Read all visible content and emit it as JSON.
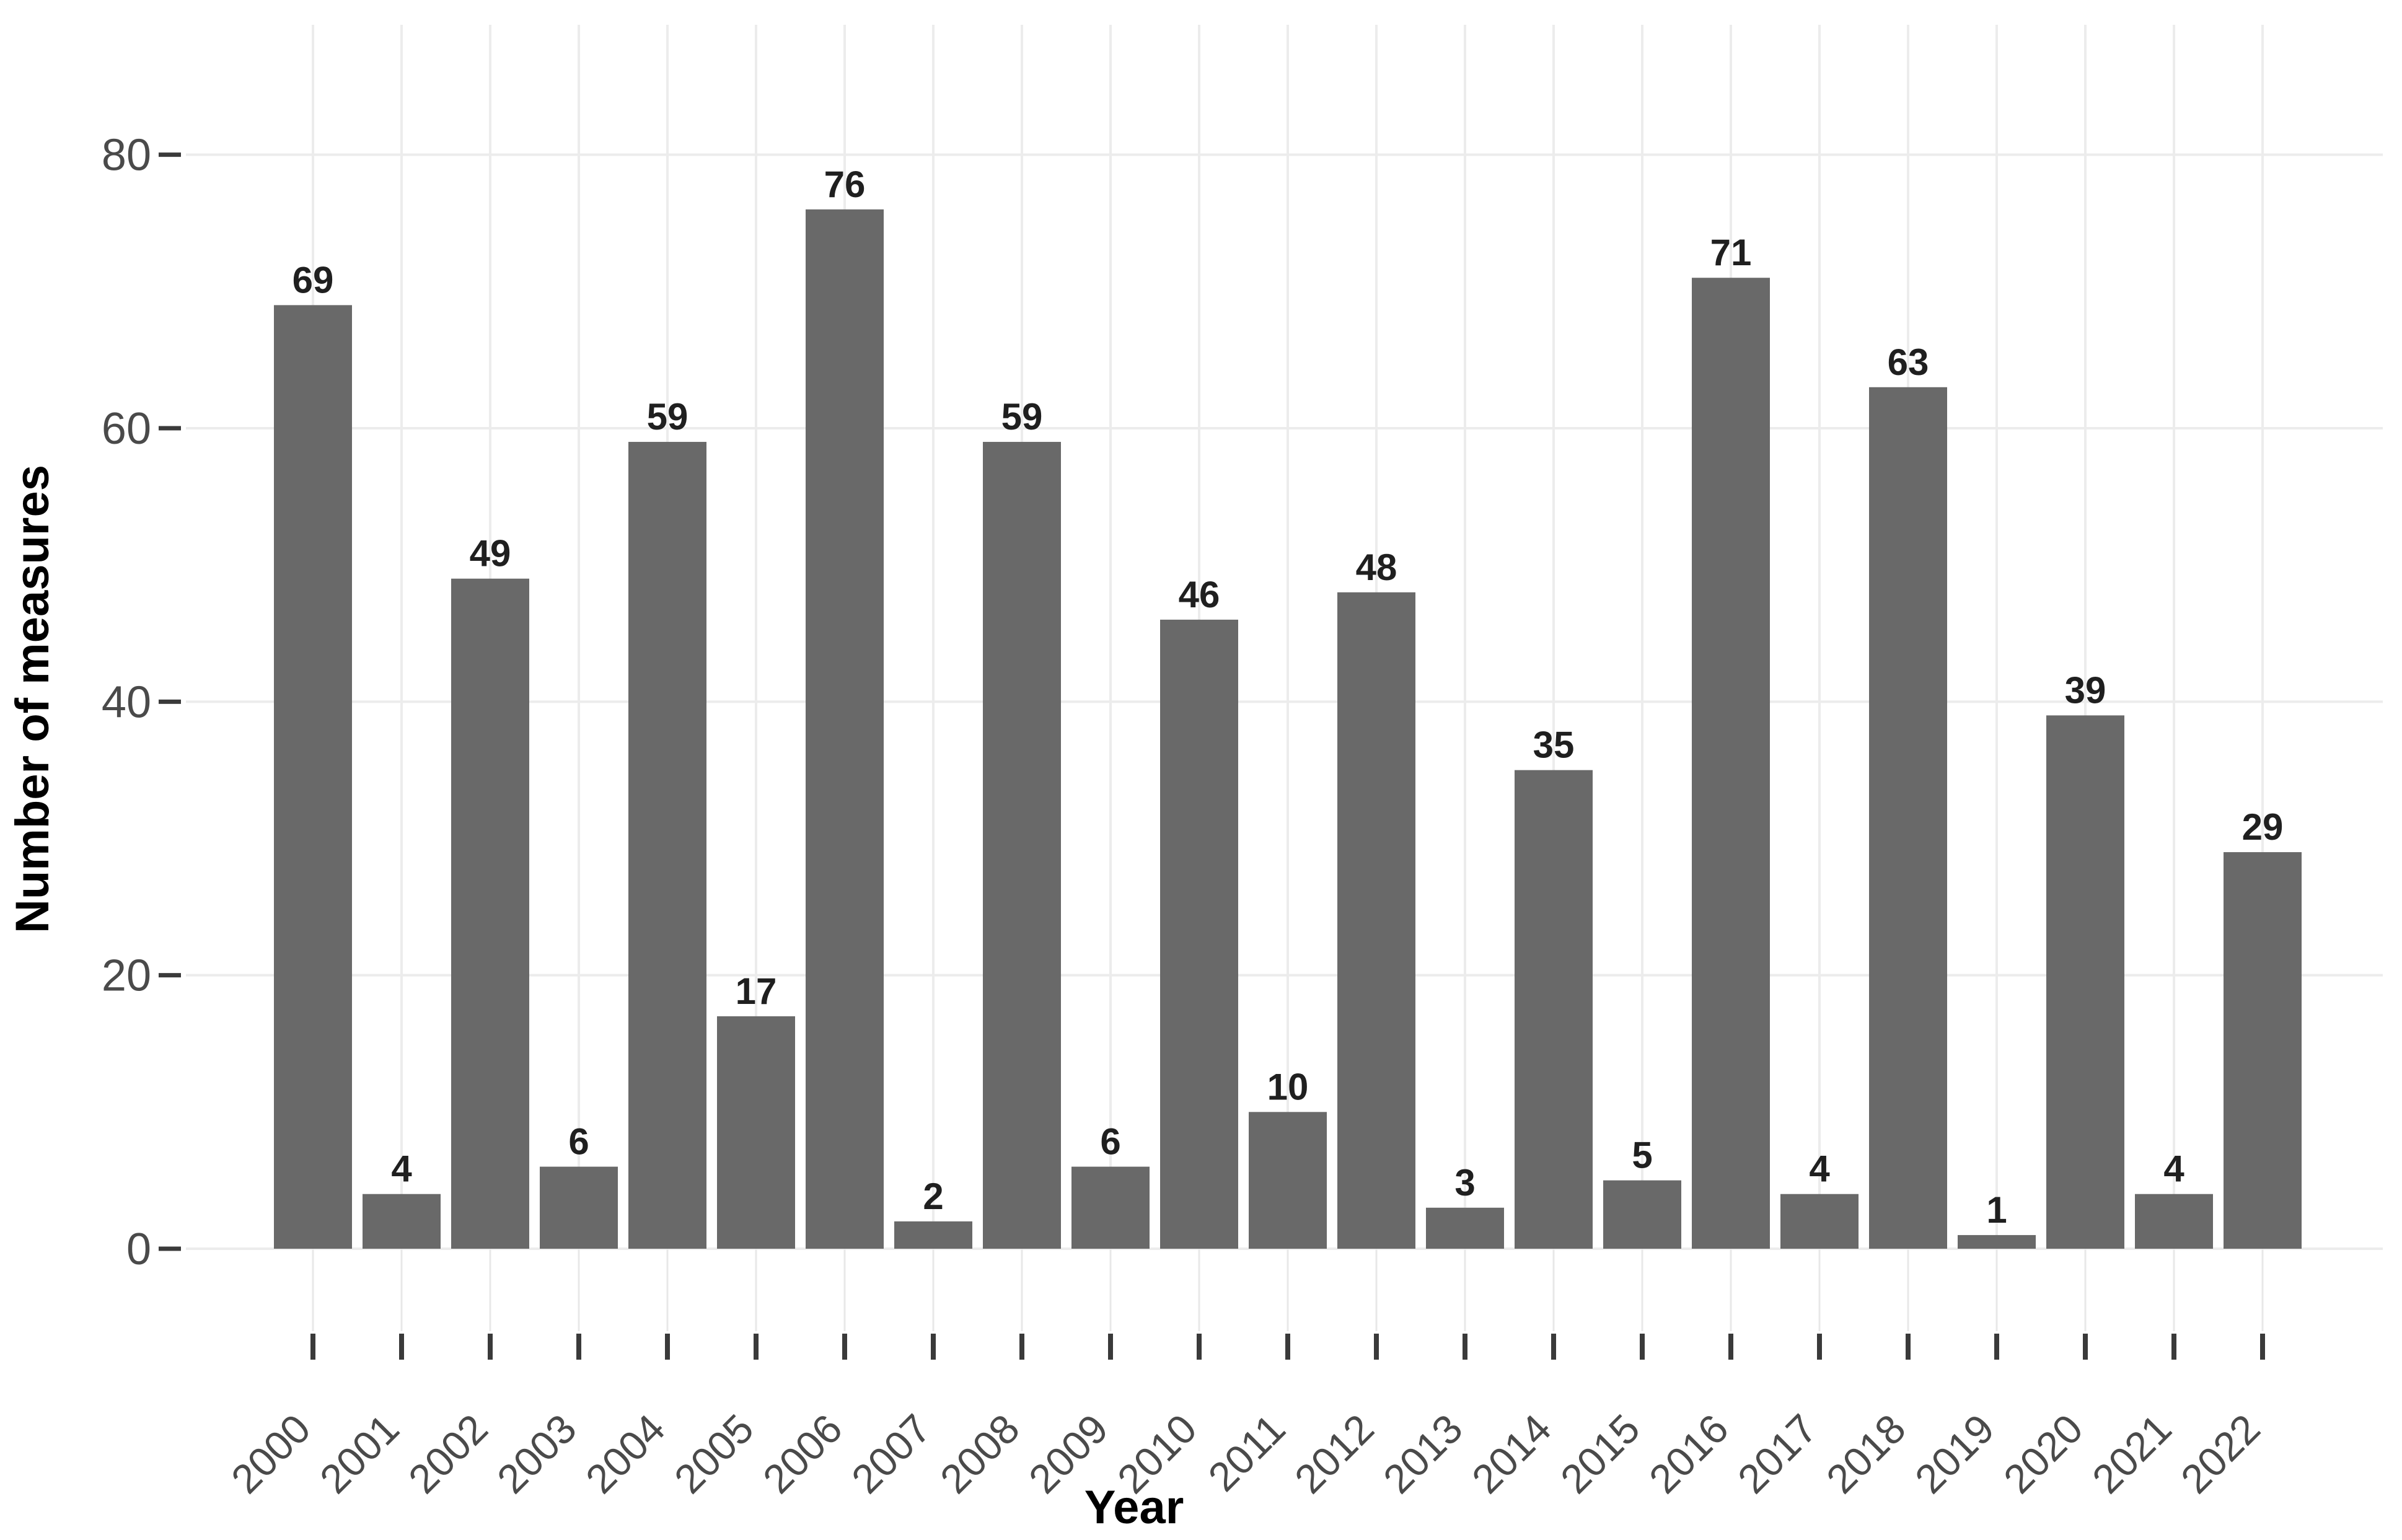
{
  "chart_data": {
    "type": "bar",
    "title": "",
    "xlabel": "Year",
    "ylabel": "Number of measures",
    "categories": [
      "2000",
      "2001",
      "2002",
      "2003",
      "2004",
      "2005",
      "2006",
      "2007",
      "2008",
      "2009",
      "2010",
      "2011",
      "2012",
      "2013",
      "2014",
      "2015",
      "2016",
      "2017",
      "2018",
      "2019",
      "2020",
      "2021",
      "2022"
    ],
    "values": [
      69,
      4,
      49,
      6,
      59,
      17,
      76,
      2,
      59,
      6,
      46,
      10,
      48,
      3,
      35,
      5,
      71,
      4,
      63,
      1,
      39,
      4,
      29
    ],
    "value_labels_shown": true,
    "yticks": [
      0,
      20,
      40,
      60,
      80
    ],
    "ylim": [
      0,
      89.5
    ],
    "legend": "none",
    "grid": {
      "horizontal_major": true,
      "vertical_major": true,
      "minor": false
    },
    "x_tick_label_angle_deg": 45
  },
  "colors": {
    "background": "#ffffff",
    "bar": "#696969",
    "grid": "#ececec",
    "tick_connector": "#e8e8e8",
    "tick_mark": "#3a3a3a",
    "axis_text": "#4a4a4a",
    "value_label": "#1f1f1f",
    "axis_title": "#000000"
  }
}
